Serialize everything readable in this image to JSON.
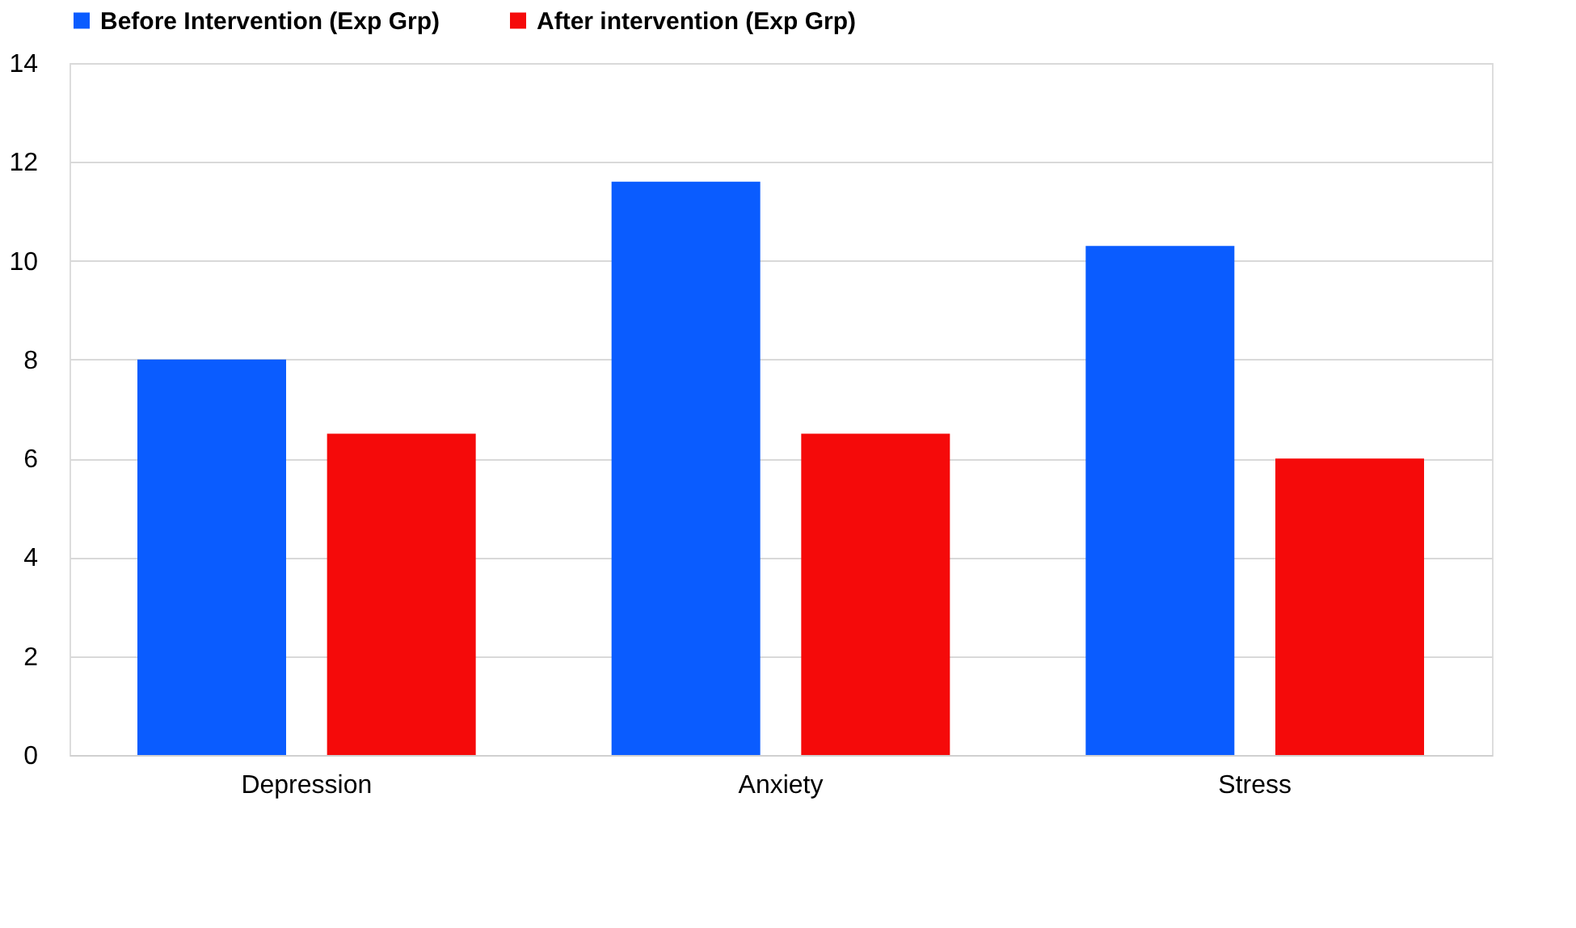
{
  "chart_data": {
    "type": "bar",
    "categories": [
      "Depression",
      "Anxiety",
      "Stress"
    ],
    "series": [
      {
        "name": "Before Intervention (Exp Grp)",
        "color": "#0a5cff",
        "values": [
          8,
          11.6,
          10.3
        ]
      },
      {
        "name": "After intervention (Exp Grp)",
        "color": "#f50a0a",
        "values": [
          6.5,
          6.5,
          6
        ]
      }
    ],
    "ylim": [
      0,
      14
    ],
    "yticks": [
      0,
      2,
      4,
      6,
      8,
      10,
      12,
      14
    ],
    "grid": "y",
    "legend": "top"
  }
}
